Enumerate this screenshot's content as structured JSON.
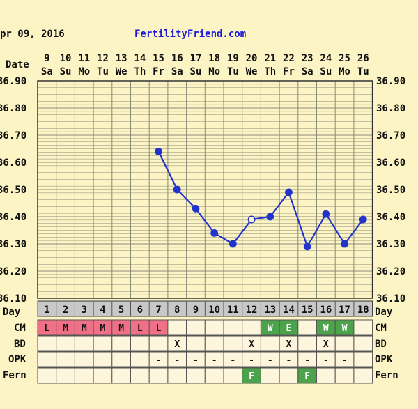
{
  "header": {
    "date_text": "pr 09, 2016",
    "site": "FertilityFriend.com"
  },
  "labels": {
    "date": "Date",
    "day": "Day",
    "cm": "CM",
    "bd": "BD",
    "opk": "OPK",
    "fern": "Fern"
  },
  "colors": {
    "background": "#fcf4c4",
    "grid": "#8a8a7a",
    "line": "#2233cc",
    "site": "#1a1ad8",
    "day_row": "#c8c8c8",
    "menses": "#f07088",
    "fertile_cm": "#4ca34c",
    "fern_positive": "#4ca34c"
  },
  "chart_data": {
    "type": "line",
    "title": "",
    "days": [
      1,
      2,
      3,
      4,
      5,
      6,
      7,
      8,
      9,
      10,
      11,
      12,
      13,
      14,
      15,
      16,
      17,
      18
    ],
    "dates": [
      "9",
      "10",
      "11",
      "12",
      "13",
      "14",
      "15",
      "16",
      "17",
      "18",
      "19",
      "20",
      "21",
      "22",
      "23",
      "24",
      "25",
      "26"
    ],
    "weekdays": [
      "Sa",
      "Su",
      "Mo",
      "Tu",
      "We",
      "Th",
      "Fr",
      "Sa",
      "Su",
      "Mo",
      "Tu",
      "We",
      "Th",
      "Fr",
      "Sa",
      "Su",
      "Mo",
      "Tu"
    ],
    "ylim": [
      36.1,
      36.9
    ],
    "yticks": [
      "36.10",
      "36.20",
      "36.30",
      "36.40",
      "36.50",
      "36.60",
      "36.70",
      "36.80",
      "36.90"
    ],
    "series": [
      {
        "values": [
          null,
          null,
          null,
          null,
          null,
          null,
          36.64,
          36.5,
          36.43,
          36.34,
          36.3,
          36.39,
          36.4,
          36.49,
          36.29,
          36.41,
          36.3,
          36.39
        ],
        "open_point_day": 12
      }
    ],
    "rows": {
      "cm": [
        "L",
        "M",
        "M",
        "M",
        "M",
        "L",
        "L",
        "",
        "",
        "",
        "",
        "",
        "W",
        "E",
        "",
        "W",
        "W",
        ""
      ],
      "bd": [
        "",
        "",
        "",
        "",
        "",
        "",
        "",
        "X",
        "",
        "",
        "",
        "X",
        "",
        "X",
        "",
        "X",
        "",
        ""
      ],
      "opk": [
        "",
        "",
        "",
        "",
        "",
        "",
        "-",
        "-",
        "-",
        "-",
        "-",
        "-",
        "-",
        "-",
        "-",
        "-",
        "-",
        ""
      ],
      "fern": [
        "",
        "",
        "",
        "",
        "",
        "",
        "",
        "",
        "",
        "",
        "",
        "F",
        "",
        "",
        "F",
        "",
        "",
        ""
      ]
    }
  }
}
